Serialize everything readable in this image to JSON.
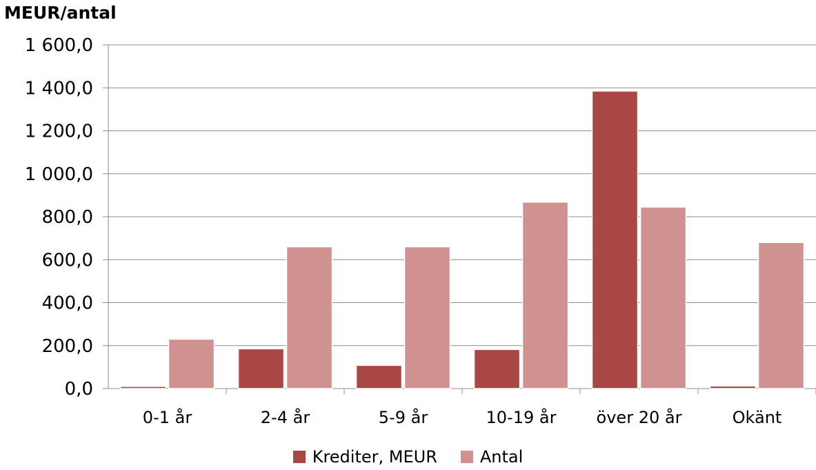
{
  "chart_data": {
    "type": "bar",
    "ylabel": "MEUR/antal",
    "categories": [
      "0-1 år",
      "2-4 år",
      "5-9 år",
      "10-19 år",
      "över 20 år",
      "Okänt"
    ],
    "series": [
      {
        "name": "Krediter, MEUR",
        "color": "#a84744",
        "values": [
          10,
          185,
          108,
          182,
          1385,
          12
        ]
      },
      {
        "name": "Antal",
        "color": "#d09290",
        "values": [
          230,
          660,
          660,
          868,
          845,
          680
        ]
      }
    ],
    "ylim": [
      0,
      1600
    ],
    "yticks": [
      "0,0",
      "200,0",
      "400,0",
      "600,0",
      "800,0",
      "1 000,0",
      "1 200,0",
      "1 400,0",
      "1 600,0"
    ],
    "grid": true,
    "legend_position": "bottom"
  }
}
